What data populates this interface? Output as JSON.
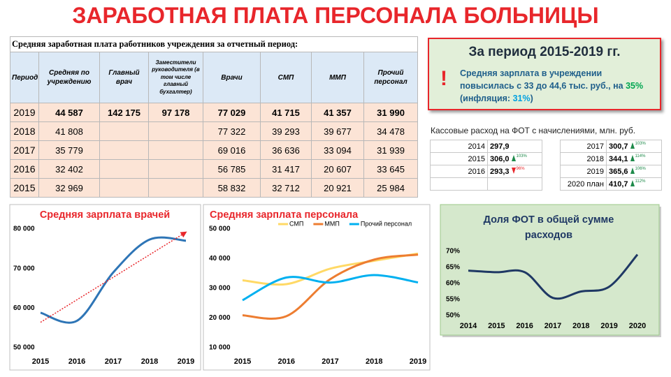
{
  "title": "ЗАРАБОТНАЯ ПЛАТА ПЕРСОНАЛА БОЛЬНИЦЫ",
  "salary_table": {
    "caption": "Средняя заработная плата работников учреждения за отчетный период:",
    "columns": [
      "Период",
      "Средняя по учреждению",
      "Главный врач",
      "Заместители руководителя (в том числе главный бухгалтер)",
      "Врачи",
      "СМП",
      "ММП",
      "Прочий персонал"
    ],
    "rows": [
      [
        "2019",
        "44 587",
        "142 175",
        "97 178",
        "77 029",
        "41 715",
        "41 357",
        "31 990"
      ],
      [
        "2018",
        "41 808",
        null,
        null,
        "77 322",
        "39 293",
        "39 677",
        "34 478"
      ],
      [
        "2017",
        "35 779",
        null,
        null,
        "69 016",
        "36 636",
        "33 094",
        "31 939"
      ],
      [
        "2016",
        "32 402",
        null,
        null,
        "56 785",
        "31 417",
        "20 607",
        "33 645"
      ],
      [
        "2015",
        "32 969",
        null,
        null,
        "58 832",
        "32 712",
        "20 921",
        "25 984"
      ]
    ]
  },
  "summary": {
    "title": "За период 2015-2019 гг.",
    "mark": "!",
    "text": "Средняя зарплата в учреждении повысилась с 33 до 44,6 тыс. руб., на",
    "growth": "35%",
    "inflation_label": "(инфляция:",
    "inflation": "31%",
    "close": ")"
  },
  "fot_table": {
    "caption": "Кассовые расход на ФОТ с начислениями, млн.  руб.",
    "left": [
      {
        "period": "2014",
        "value": "297,9"
      },
      {
        "period": "2015",
        "value": "306,0",
        "change": "103%",
        "direction": "up"
      },
      {
        "period": "2016",
        "value": "293,3",
        "change": "96%",
        "direction": "down"
      }
    ],
    "right": [
      {
        "period": "2017",
        "value": "300,7",
        "change": "103%",
        "direction": "up"
      },
      {
        "period": "2018",
        "value": "344,1",
        "change": "114%",
        "direction": "up"
      },
      {
        "period": "2019",
        "value": "365,6",
        "change": "106%",
        "direction": "up"
      },
      {
        "period": "2020 план",
        "value": "410,7",
        "change": "112%",
        "direction": "up"
      }
    ]
  },
  "chart_data": [
    {
      "type": "line",
      "title": "Средняя зарплата врачей",
      "categories": [
        "2015",
        "2016",
        "2017",
        "2018",
        "2019"
      ],
      "values": [
        58832,
        56785,
        69016,
        77322,
        77029
      ],
      "color": "#2e75b6",
      "trendline": true,
      "trendline_color": "#e8262b",
      "ylim": [
        50000,
        80000
      ],
      "yticks": [
        {
          "value": 50000,
          "label": "50 000"
        },
        {
          "value": 60000,
          "label": "60 000"
        },
        {
          "value": 70000,
          "label": "70 000"
        },
        {
          "value": 80000,
          "label": "80 000"
        }
      ]
    },
    {
      "type": "line",
      "title": "Средняя зарплата персонала",
      "categories": [
        "2015",
        "2016",
        "2017",
        "2018",
        "2019"
      ],
      "series": [
        {
          "name": "СМП",
          "color": "#ffd966",
          "values": [
            32712,
            31417,
            36636,
            39293,
            41715
          ]
        },
        {
          "name": "ММП",
          "color": "#ed7d31",
          "values": [
            20921,
            20607,
            33094,
            39677,
            41357
          ]
        },
        {
          "name": "Прочий персонал",
          "color": "#00b0f0",
          "values": [
            25984,
            33645,
            31939,
            34478,
            31990
          ]
        }
      ],
      "ylim": [
        10000,
        50000
      ],
      "yticks": [
        {
          "value": 10000,
          "label": "10 000"
        },
        {
          "value": 20000,
          "label": "20 000"
        },
        {
          "value": 30000,
          "label": "30 000"
        },
        {
          "value": 40000,
          "label": "40 000"
        },
        {
          "value": 50000,
          "label": "50 000"
        }
      ]
    },
    {
      "type": "line",
      "title": "Доля ФОТ в общей сумме расходов",
      "categories": [
        "2014",
        "2015",
        "2016",
        "2017",
        "2018",
        "2019",
        "2020"
      ],
      "values": [
        64,
        63.5,
        63.5,
        55.5,
        57.5,
        59,
        69
      ],
      "color": "#1f3864",
      "ylim": [
        50,
        70
      ],
      "yticks": [
        {
          "value": 50,
          "label": "50%"
        },
        {
          "value": 55,
          "label": "55%"
        },
        {
          "value": 60,
          "label": "60%"
        },
        {
          "value": 65,
          "label": "65%"
        },
        {
          "value": 70,
          "label": "70%"
        }
      ]
    }
  ]
}
